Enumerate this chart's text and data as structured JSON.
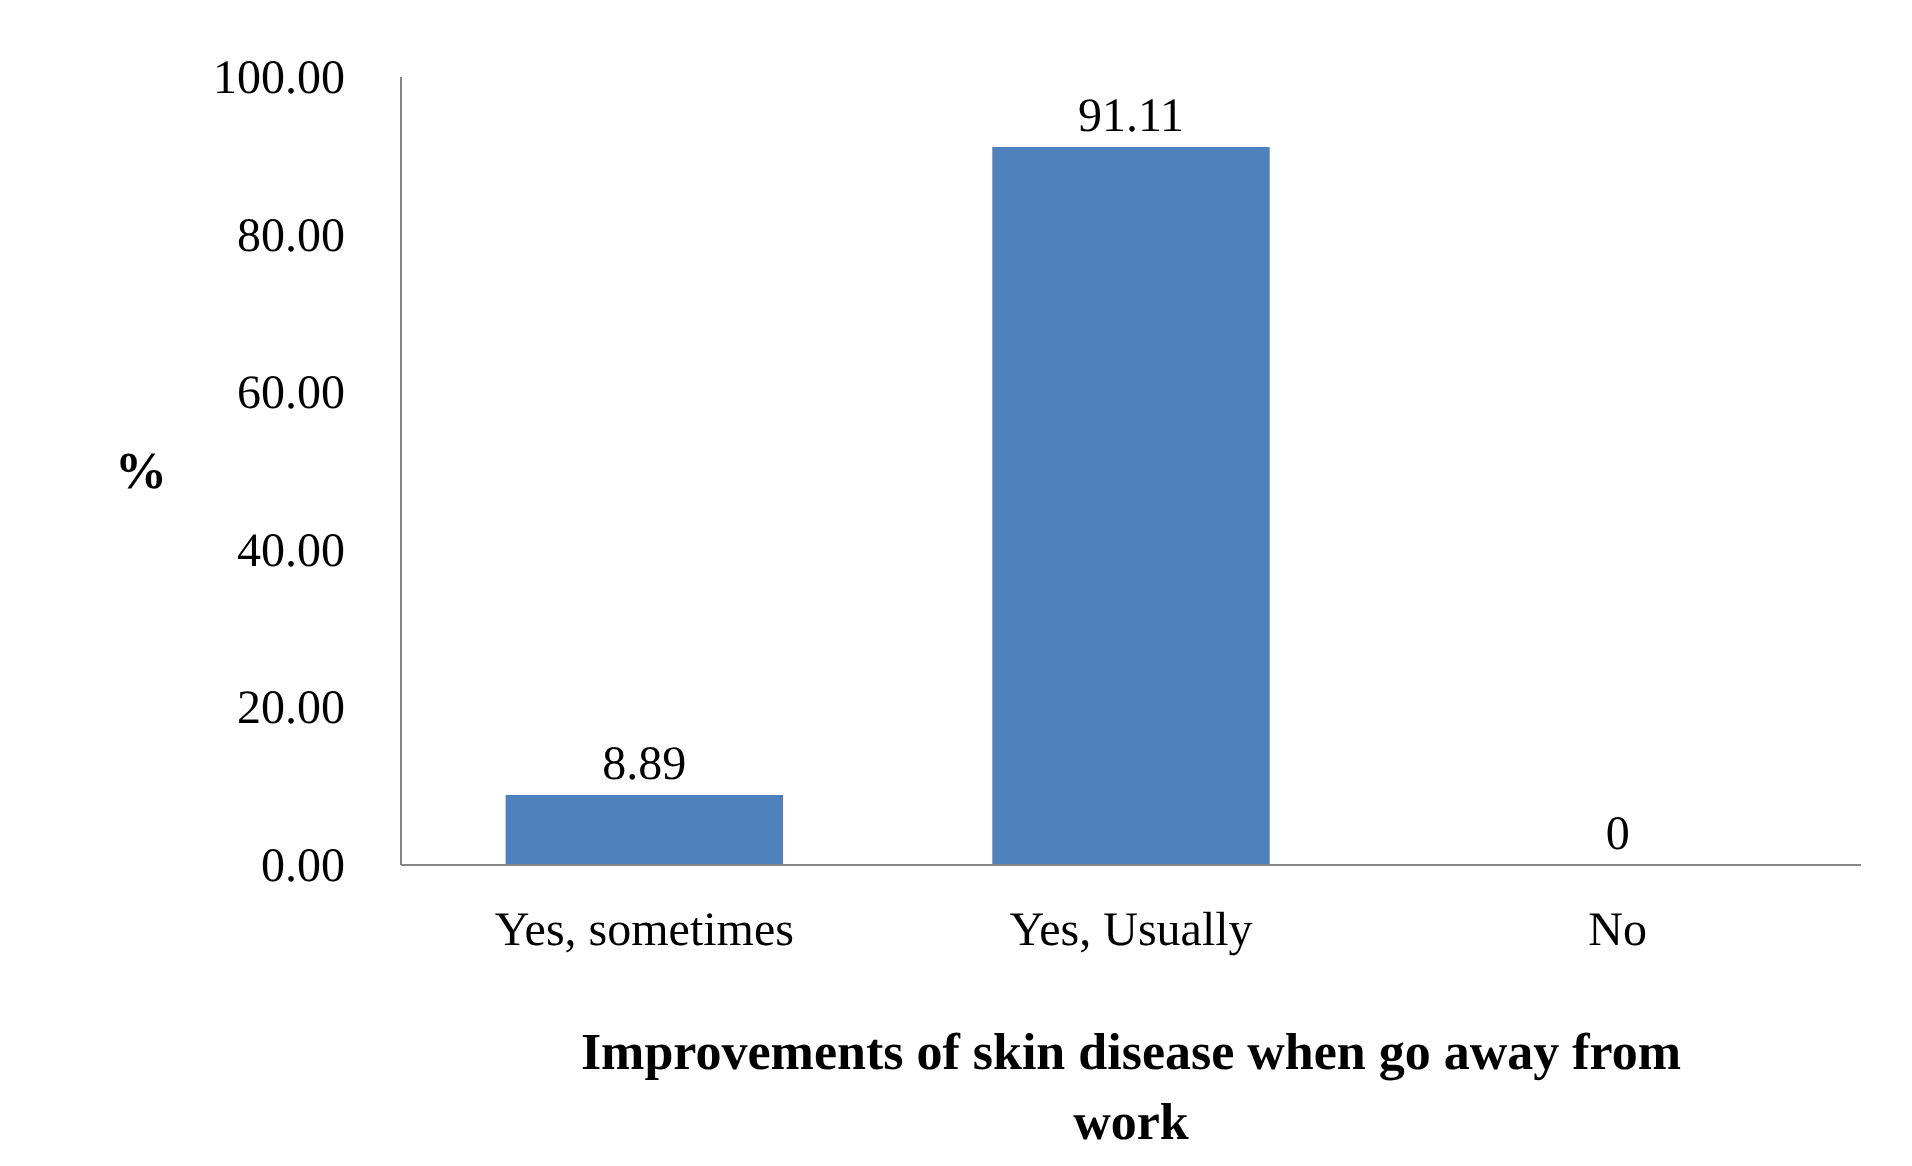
{
  "chart_data": {
    "type": "bar",
    "xlabel": "Improvements of skin disease when go away from work",
    "ylabel": "%",
    "categories": [
      "Yes, sometimes",
      "Yes, Usually",
      "No"
    ],
    "values": [
      8.89,
      91.11,
      0
    ],
    "color": "#4f81bd",
    "data_labels": true,
    "grid": false,
    "ylim": [
      0,
      100
    ],
    "yticks": [
      {
        "value": 0,
        "label": "0.00"
      },
      {
        "value": 20,
        "label": "20.00"
      },
      {
        "value": 40,
        "label": "40.00"
      },
      {
        "value": 60,
        "label": "60.00"
      },
      {
        "value": 80,
        "label": "80.00"
      },
      {
        "value": 100,
        "label": "100.00"
      }
    ]
  }
}
